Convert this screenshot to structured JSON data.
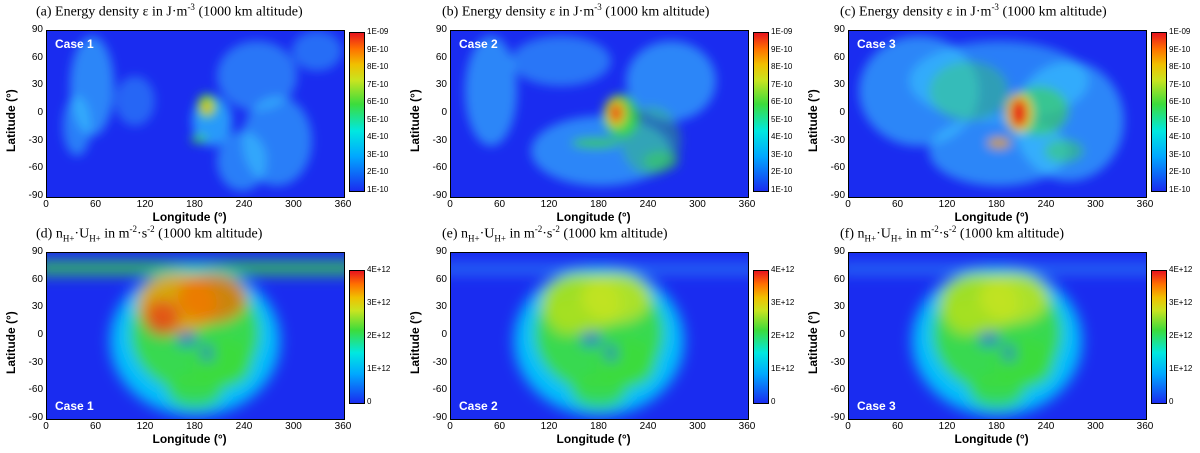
{
  "panels": [
    {
      "id": "a",
      "title_pre": "(a) Energy density ε in J·m",
      "title_sup": "-3",
      "title_post": " (1000 km altitude)",
      "case": "Case 1",
      "case_pos": "top",
      "cbar_ticks": [
        "1E-09",
        "9E-10",
        "8E-10",
        "7E-10",
        "6E-10",
        "5E-10",
        "4E-10",
        "3E-10",
        "2E-10",
        "1E-10"
      ]
    },
    {
      "id": "b",
      "title_pre": "(b) Energy density ε in J·m",
      "title_sup": "-3",
      "title_post": " (1000 km altitude)",
      "case": "Case 2",
      "case_pos": "top",
      "cbar_ticks": [
        "1E-09",
        "9E-10",
        "8E-10",
        "7E-10",
        "6E-10",
        "5E-10",
        "4E-10",
        "3E-10",
        "2E-10",
        "1E-10"
      ]
    },
    {
      "id": "c",
      "title_pre": "(c) Energy density ε in J·m",
      "title_sup": "-3",
      "title_post": " (1000 km altitude)",
      "case": "Case 3",
      "case_pos": "top",
      "cbar_ticks": [
        "1E-09",
        "9E-10",
        "8E-10",
        "7E-10",
        "6E-10",
        "5E-10",
        "4E-10",
        "3E-10",
        "2E-10",
        "1E-10"
      ]
    },
    {
      "id": "d",
      "title_pre": "(d) n",
      "title_sub1": "H+",
      "title_mid": "·U",
      "title_sub2": "H+",
      "title_mid2": " in m",
      "title_sup": "-2",
      "title_mid3": "·s",
      "title_sup2": "-2",
      "title_post": " (1000 km altitude)",
      "case": "Case 1",
      "case_pos": "bottom",
      "cbar_ticks": [
        "4E+12",
        "3E+12",
        "2E+12",
        "1E+12",
        "0"
      ]
    },
    {
      "id": "e",
      "title_pre": "(e) n",
      "title_sub1": "H+",
      "title_mid": "·U",
      "title_sub2": "H+",
      "title_mid2": " in m",
      "title_sup": "-2",
      "title_mid3": "·s",
      "title_sup2": "-2",
      "title_post": " (1000 km altitude)",
      "case": "Case 2",
      "case_pos": "bottom",
      "cbar_ticks": [
        "4E+12",
        "3E+12",
        "2E+12",
        "1E+12",
        "0"
      ]
    },
    {
      "id": "f",
      "title_pre": "(f) n",
      "title_sub1": "H+",
      "title_mid": "·U",
      "title_sub2": "H+",
      "title_mid2": " in m",
      "title_sup": "-2",
      "title_mid3": "·s",
      "title_sup2": "-2",
      "title_post": " (1000 km altitude)",
      "case": "Case 3",
      "case_pos": "bottom",
      "cbar_ticks": [
        "4E+12",
        "3E+12",
        "2E+12",
        "1E+12",
        "0"
      ]
    }
  ],
  "chart_data": [
    {
      "type": "heatmap",
      "panel": "a",
      "title": "(a) Energy density ε in J·m-3 (1000 km altitude)",
      "xlabel": "Longitude (°)",
      "ylabel": "Latitude (°)",
      "xlim": [
        0,
        360
      ],
      "ylim": [
        -90,
        90
      ],
      "xticks": [
        "0",
        "60",
        "120",
        "180",
        "240",
        "300",
        "360"
      ],
      "yticks": [
        "90",
        "60",
        "30",
        "0",
        "-30",
        "-60",
        "-90"
      ],
      "colorbar": {
        "min": 1e-10,
        "max": 1e-09
      },
      "annotation": "Case 1"
    },
    {
      "type": "heatmap",
      "panel": "b",
      "title": "(b) Energy density ε in J·m-3 (1000 km altitude)",
      "xlabel": "Longitude (°)",
      "ylabel": "Latitude (°)",
      "xlim": [
        0,
        360
      ],
      "ylim": [
        -90,
        90
      ],
      "xticks": [
        "0",
        "60",
        "120",
        "180",
        "240",
        "300",
        "360"
      ],
      "yticks": [
        "90",
        "60",
        "30",
        "0",
        "-30",
        "-60",
        "-90"
      ],
      "colorbar": {
        "min": 1e-10,
        "max": 1e-09
      },
      "annotation": "Case 2"
    },
    {
      "type": "heatmap",
      "panel": "c",
      "title": "(c) Energy density ε in J·m-3 (1000 km altitude)",
      "xlabel": "Longitude (°)",
      "ylabel": "Latitude (°)",
      "xlim": [
        0,
        360
      ],
      "ylim": [
        -90,
        90
      ],
      "xticks": [
        "0",
        "60",
        "120",
        "180",
        "240",
        "300",
        "360"
      ],
      "yticks": [
        "90",
        "60",
        "30",
        "0",
        "-30",
        "-60",
        "-90"
      ],
      "colorbar": {
        "min": 1e-10,
        "max": 1e-09
      },
      "annotation": "Case 3"
    },
    {
      "type": "heatmap",
      "panel": "d",
      "title": "(d) nH+·UH+ in m-2·s-2 (1000 km altitude)",
      "xlabel": "Longitude (°)",
      "ylabel": "Latitude (°)",
      "xlim": [
        0,
        360
      ],
      "ylim": [
        -90,
        90
      ],
      "xticks": [
        "0",
        "60",
        "120",
        "180",
        "240",
        "300",
        "360"
      ],
      "yticks": [
        "90",
        "60",
        "30",
        "0",
        "-30",
        "-60",
        "-90"
      ],
      "colorbar": {
        "min": 0,
        "max": 4000000000000.0
      },
      "annotation": "Case 1"
    },
    {
      "type": "heatmap",
      "panel": "e",
      "title": "(e) nH+·UH+ in m-2·s-2 (1000 km altitude)",
      "xlabel": "Longitude (°)",
      "ylabel": "Latitude (°)",
      "xlim": [
        0,
        360
      ],
      "ylim": [
        -90,
        90
      ],
      "xticks": [
        "0",
        "60",
        "120",
        "180",
        "240",
        "300",
        "360"
      ],
      "yticks": [
        "90",
        "60",
        "30",
        "0",
        "-30",
        "-60",
        "-90"
      ],
      "colorbar": {
        "min": 0,
        "max": 4000000000000.0
      },
      "annotation": "Case 2"
    },
    {
      "type": "heatmap",
      "panel": "f",
      "title": "(f) nH+·UH+ in m-2·s-2 (1000 km altitude)",
      "xlabel": "Longitude (°)",
      "ylabel": "Latitude (°)",
      "xlim": [
        0,
        360
      ],
      "ylim": [
        -90,
        90
      ],
      "xticks": [
        "0",
        "60",
        "120",
        "180",
        "240",
        "300",
        "360"
      ],
      "yticks": [
        "90",
        "60",
        "30",
        "0",
        "-30",
        "-60",
        "-90"
      ],
      "colorbar": {
        "min": 0,
        "max": 4000000000000.0
      },
      "annotation": "Case 3"
    }
  ],
  "axis": {
    "xlabel": "Longitude (°)",
    "ylabel": "Latitude (°)"
  },
  "colors": {
    "low": "#1a2cf0",
    "cyan": "#00d8ff",
    "green": "#3cdc3c",
    "yellow": "#f0e000",
    "orange": "#ff8a00",
    "red": "#e8141e"
  }
}
